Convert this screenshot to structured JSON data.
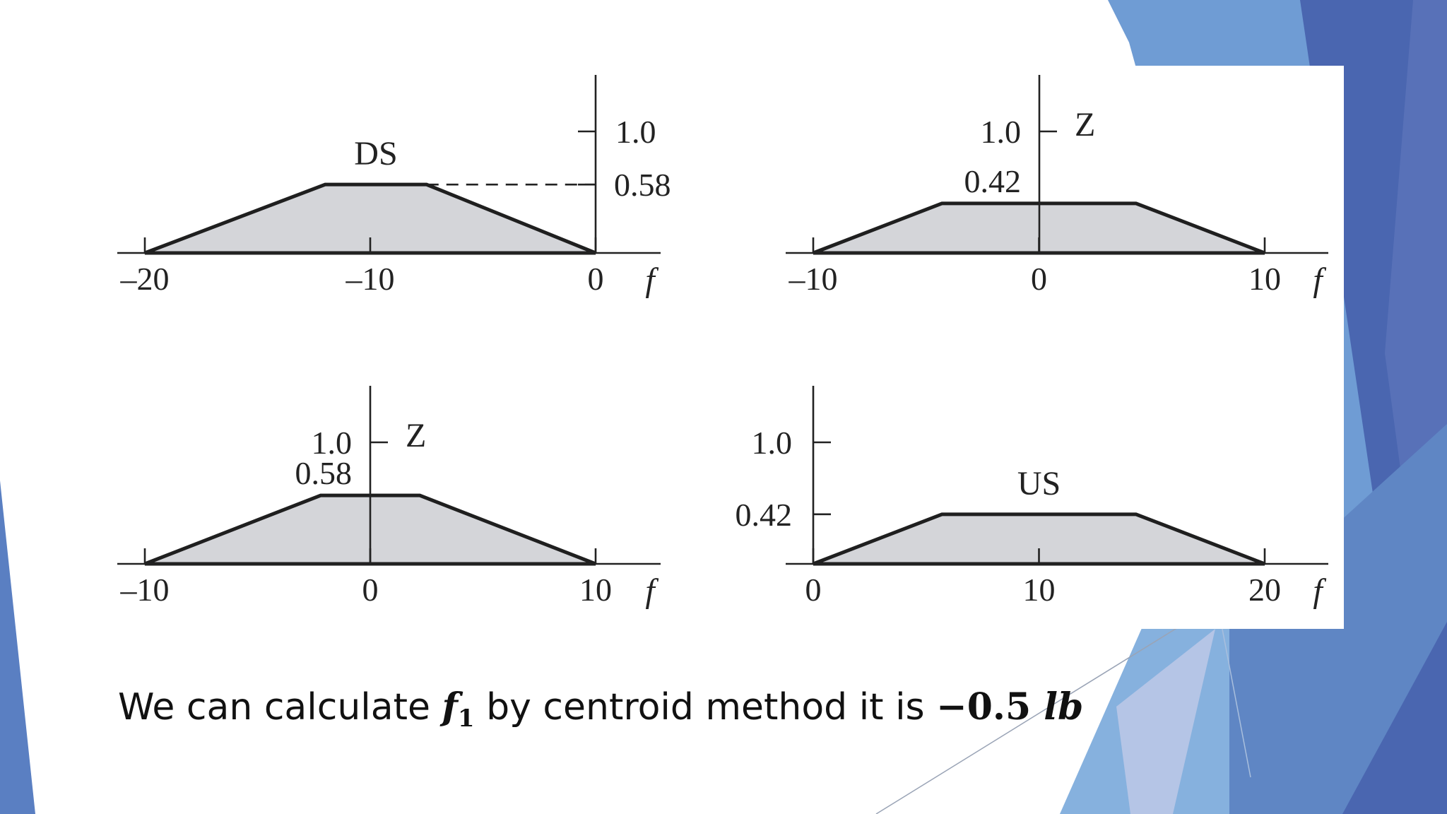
{
  "slide": {
    "caption": {
      "prefix": "We can calculate ",
      "variable": "f",
      "subscript": "1",
      "middle": " by centroid method it is ",
      "value": "−0.5 ",
      "unit": "lb"
    }
  },
  "colors": {
    "background": "#ffffff",
    "fill": "#d4d5d9",
    "outline": "#1f1f1f",
    "accent_blue_dark": "#4a66b0",
    "accent_blue_mid": "#5f86c4",
    "accent_blue_light": "#86b1de"
  },
  "diagrams": [
    {
      "shape_label": "DS",
      "x_ticks": [
        "–20",
        "–10",
        "0"
      ],
      "x_var": "f",
      "y_labels": [
        "1.0",
        "0.58"
      ],
      "z_label": "",
      "x_domain": [
        -20,
        0
      ],
      "trapezoid": {
        "left": -20,
        "top_left": -12,
        "top_right": -7.5,
        "right": 0,
        "height": 0.58
      }
    },
    {
      "shape_label": "",
      "x_ticks": [
        "–10",
        "0",
        "10"
      ],
      "x_var": "f",
      "y_labels": [
        "1.0",
        "0.42"
      ],
      "z_label": "Z",
      "x_domain": [
        -10,
        10
      ],
      "trapezoid": {
        "left": -10,
        "top_left": -4.3,
        "top_right": 4.3,
        "right": 10,
        "height": 0.42
      }
    },
    {
      "shape_label": "",
      "x_ticks": [
        "–10",
        "0",
        "10"
      ],
      "x_var": "f",
      "y_labels": [
        "1.0",
        "0.58"
      ],
      "z_label": "Z",
      "x_domain": [
        -10,
        10
      ],
      "trapezoid": {
        "left": -10,
        "top_left": -2.2,
        "top_right": 2.2,
        "right": 10,
        "height": 0.58
      }
    },
    {
      "shape_label": "US",
      "x_ticks": [
        "0",
        "10",
        "20"
      ],
      "x_var": "f",
      "y_labels": [
        "1.0",
        "0.42"
      ],
      "z_label": "",
      "x_domain": [
        0,
        20
      ],
      "trapezoid": {
        "left": 0,
        "top_left": 5.7,
        "top_right": 14.3,
        "right": 20,
        "height": 0.42
      }
    }
  ]
}
